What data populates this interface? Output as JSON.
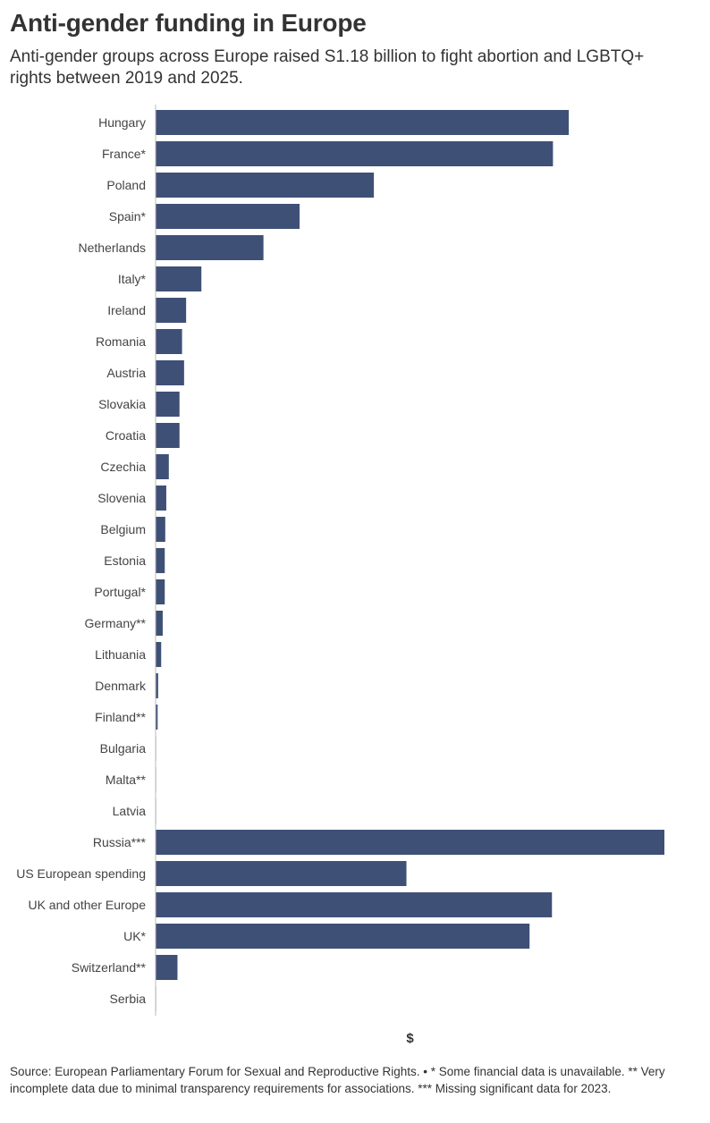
{
  "header": {
    "title": "Anti-gender funding in Europe",
    "subtitle": "Anti-gender groups across Europe raised S1.18 billion to fight abortion and LGBTQ+ rights between 2019 and 2025."
  },
  "colors": {
    "bar": "#3f5077",
    "axis": "#bbbbbb"
  },
  "chart_data": {
    "type": "bar",
    "orientation": "horizontal",
    "title": "Anti-gender funding in Europe",
    "xlabel": "$",
    "ylabel": "",
    "xlim": [
      0,
      100
    ],
    "grid": false,
    "legend": "none",
    "categories": [
      "Hungary",
      "France*",
      "Poland",
      "Spain*",
      "Netherlands",
      "Italy*",
      "Ireland",
      "Romania",
      "Austria",
      "Slovakia",
      "Croatia",
      "Czechia",
      "Slovenia",
      "Belgium",
      "Estonia",
      "Portugal*",
      "Germany**",
      "Lithuania",
      "Denmark",
      "Finland**",
      "Bulgaria",
      "Malta**",
      "Latvia",
      "Russia***",
      "US European spending",
      "UK and other Europe",
      "UK*",
      "Switzerland**",
      "Serbia"
    ],
    "values": [
      81.2,
      78.1,
      42.9,
      28.3,
      21.2,
      9.0,
      6.0,
      5.2,
      5.6,
      4.7,
      4.7,
      2.6,
      2.1,
      1.9,
      1.8,
      1.8,
      1.4,
      1.1,
      0.5,
      0.4,
      0.1,
      0.1,
      0.1,
      100.0,
      49.3,
      77.9,
      73.5,
      4.3,
      0.1
    ]
  },
  "footer": {
    "source": "Source: European Parliamentary Forum for Sexual and Reproductive Rights. • * Some financial data is unavailable. ** Very incomplete data due to minimal transparency requirements for associations. *** Missing significant data for 2023."
  }
}
